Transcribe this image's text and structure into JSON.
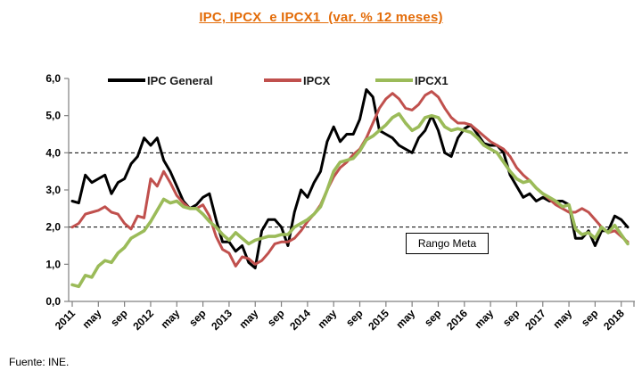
{
  "title": {
    "text": "IPC, IPCX  e IPCX1  (var. % 12 meses)",
    "color": "#E36C09"
  },
  "source_note": "Fuente: INE.",
  "annotation": {
    "label": "Rango Meta"
  },
  "legend": [
    {
      "label": "IPC General",
      "color": "#000000"
    },
    {
      "label": "IPCX",
      "color": "#C0504D"
    },
    {
      "label": "IPCX1",
      "color": "#9BBB59"
    }
  ],
  "chart_data": {
    "type": "line",
    "title": "IPC, IPCX  e IPCX1  (var. % 12 meses)",
    "x_unit": "monthly, Jan 2011 - Feb 2018",
    "x_tick_labels": [
      "2011",
      "may",
      "sep",
      "2012",
      "may",
      "sep",
      "2013",
      "may",
      "sep",
      "2014",
      "may",
      "sep",
      "2015",
      "may",
      "sep",
      "2016",
      "may",
      "sep",
      "2017",
      "may",
      "sep",
      "2018"
    ],
    "x_tick_every_n_months": 4,
    "ylim": [
      0,
      6
    ],
    "y_tick_labels": [
      "0,0",
      "1,0",
      "2,0",
      "3,0",
      "4,0",
      "5,0",
      "6,0"
    ],
    "reference_lines": [
      2.0,
      4.0
    ],
    "reference_style": "dashed-black",
    "axis_color": "#808080",
    "grid": false,
    "legend_position": "top-inside",
    "series": [
      {
        "name": "IPC General",
        "color": "#000000",
        "width": 3,
        "values": [
          2.7,
          2.65,
          3.4,
          3.2,
          3.3,
          3.4,
          2.9,
          3.2,
          3.3,
          3.7,
          3.9,
          4.4,
          4.2,
          4.4,
          3.8,
          3.5,
          3.1,
          2.7,
          2.5,
          2.6,
          2.8,
          2.9,
          2.2,
          1.6,
          1.6,
          1.35,
          1.5,
          1.05,
          0.9,
          1.9,
          2.2,
          2.2,
          2.0,
          1.5,
          2.4,
          3.0,
          2.8,
          3.2,
          3.5,
          4.3,
          4.7,
          4.3,
          4.5,
          4.5,
          4.9,
          5.7,
          5.5,
          4.6,
          4.5,
          4.4,
          4.2,
          4.1,
          4.0,
          4.4,
          4.6,
          5.0,
          4.6,
          4.0,
          3.9,
          4.4,
          4.65,
          4.75,
          4.5,
          4.25,
          4.2,
          4.2,
          4.0,
          3.4,
          3.1,
          2.8,
          2.9,
          2.7,
          2.8,
          2.7,
          2.7,
          2.7,
          2.6,
          1.7,
          1.7,
          1.9,
          1.5,
          1.9,
          1.9,
          2.3,
          2.2,
          2.0
        ]
      },
      {
        "name": "IPCX",
        "color": "#C0504D",
        "width": 3,
        "values": [
          2.0,
          2.1,
          2.35,
          2.4,
          2.45,
          2.55,
          2.4,
          2.35,
          2.1,
          1.95,
          2.3,
          2.25,
          3.3,
          3.1,
          3.5,
          3.2,
          2.85,
          2.65,
          2.5,
          2.5,
          2.6,
          2.3,
          1.75,
          1.4,
          1.3,
          0.95,
          1.2,
          1.15,
          1.0,
          1.1,
          1.3,
          1.55,
          1.6,
          1.6,
          1.7,
          1.9,
          2.15,
          2.35,
          2.6,
          3.0,
          3.35,
          3.6,
          3.75,
          3.95,
          4.1,
          4.4,
          4.8,
          5.2,
          5.45,
          5.6,
          5.45,
          5.2,
          5.15,
          5.3,
          5.55,
          5.65,
          5.5,
          5.2,
          4.95,
          4.8,
          4.8,
          4.75,
          4.6,
          4.45,
          4.3,
          4.2,
          4.1,
          3.9,
          3.6,
          3.4,
          3.25,
          3.05,
          2.9,
          2.75,
          2.6,
          2.5,
          2.4,
          2.4,
          2.5,
          2.4,
          2.2,
          2.0,
          1.85,
          1.9,
          1.75,
          1.6
        ]
      },
      {
        "name": "IPCX1",
        "color": "#9BBB59",
        "width": 3.6,
        "values": [
          0.45,
          0.4,
          0.7,
          0.65,
          0.95,
          1.1,
          1.05,
          1.3,
          1.45,
          1.7,
          1.8,
          1.9,
          2.15,
          2.45,
          2.75,
          2.65,
          2.7,
          2.55,
          2.5,
          2.5,
          2.35,
          2.15,
          2.0,
          1.8,
          1.65,
          1.85,
          1.7,
          1.55,
          1.65,
          1.7,
          1.75,
          1.75,
          1.8,
          1.8,
          2.0,
          2.1,
          2.2,
          2.35,
          2.55,
          3.0,
          3.5,
          3.75,
          3.8,
          3.85,
          4.05,
          4.35,
          4.45,
          4.6,
          4.75,
          4.95,
          5.05,
          4.8,
          4.6,
          4.7,
          4.95,
          5.0,
          4.95,
          4.7,
          4.6,
          4.65,
          4.6,
          4.55,
          4.4,
          4.2,
          4.1,
          4.0,
          3.75,
          3.5,
          3.3,
          3.2,
          3.25,
          3.05,
          2.9,
          2.8,
          2.7,
          2.55,
          2.6,
          1.95,
          1.8,
          1.85,
          1.7,
          2.0,
          1.85,
          2.05,
          1.8,
          1.55
        ]
      }
    ]
  }
}
